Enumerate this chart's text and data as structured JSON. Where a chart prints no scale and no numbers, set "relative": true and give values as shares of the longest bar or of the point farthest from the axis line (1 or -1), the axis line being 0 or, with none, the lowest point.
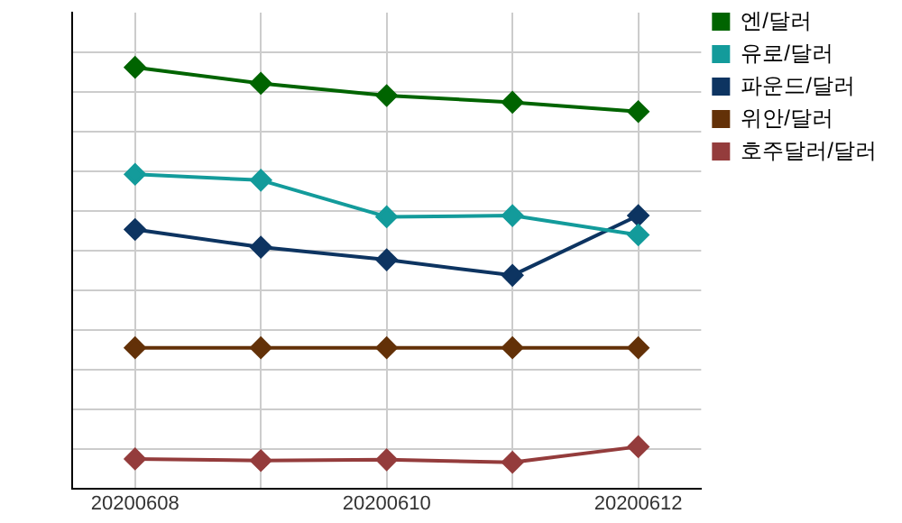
{
  "chart_data": {
    "type": "line",
    "relative": true,
    "categories": [
      "20200608",
      null,
      "20200610",
      null,
      "20200612"
    ],
    "series": [
      {
        "name": "엔/달러",
        "color": "#006400",
        "values": [
          1,
          0.962,
          0.933,
          0.917,
          0.895
        ]
      },
      {
        "name": "유로/달러",
        "color": "#139b9b",
        "values": [
          0.746,
          0.732,
          0.645,
          0.648,
          0.602
        ]
      },
      {
        "name": "파운드/달러",
        "color": "#0d3461",
        "values": [
          0.615,
          0.573,
          0.543,
          0.506,
          0.648
        ]
      },
      {
        "name": "위안/달러",
        "color": "#633108",
        "values": [
          0.334,
          0.334,
          0.334,
          0.334,
          0.334
        ]
      },
      {
        "name": "호주달러/달러",
        "color": "#943c3c",
        "values": [
          0.07,
          0.066,
          0.068,
          0.062,
          0.099
        ]
      }
    ],
    "marker": "diamond",
    "line_style": "solid",
    "grid": true,
    "legend": "right"
  }
}
